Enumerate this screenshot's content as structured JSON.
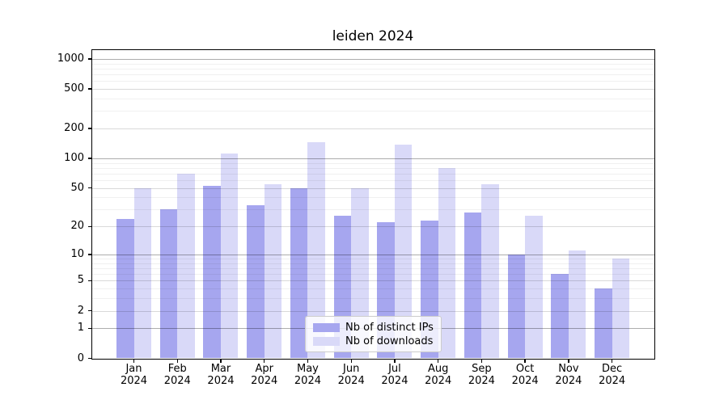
{
  "figure": {
    "background": "#ffffff"
  },
  "chart_data": {
    "type": "bar",
    "title": "leiden 2024",
    "xlabel": "",
    "ylabel": "",
    "categories": [
      "Jan 2024",
      "Feb 2024",
      "Mar 2024",
      "Apr 2024",
      "May 2024",
      "Jun 2024",
      "Jul 2024",
      "Aug 2024",
      "Sep 2024",
      "Oct 2024",
      "Nov 2024",
      "Dec 2024"
    ],
    "series": [
      {
        "name": "Nb of distinct IPs",
        "color": "#a6a6ef",
        "values": [
          24,
          30,
          53,
          33,
          50,
          26,
          22,
          23,
          28,
          10,
          6,
          4
        ]
      },
      {
        "name": "Nb of downloads",
        "color": "#d9d9f8",
        "values": [
          50,
          70,
          112,
          55,
          145,
          50,
          138,
          80,
          55,
          26,
          11,
          9
        ]
      }
    ],
    "yscale": "log1p",
    "ylim": [
      0,
      1230
    ],
    "y_ticks": [
      0,
      1,
      2,
      5,
      10,
      20,
      50,
      100,
      200,
      500,
      1000
    ],
    "y_decade_ticks": [
      1,
      10,
      100,
      1000
    ],
    "y_minor_gridlines": [
      3,
      4,
      6,
      7,
      8,
      9,
      30,
      40,
      60,
      70,
      80,
      90,
      300,
      400,
      600,
      700,
      800,
      900
    ],
    "grid": "horizontal, over bars",
    "legend_position": "lower center"
  },
  "legend": {
    "items": [
      {
        "label": "Nb of distinct IPs",
        "swatch_color": "#a6a6ef"
      },
      {
        "label": "Nb of downloads",
        "swatch_color": "#d9d9f8"
      }
    ]
  },
  "colors": {
    "background": "#ffffff",
    "spine": "#000000",
    "grid_decade": "rgba(0,0,0,0.32)",
    "grid_major": "rgba(0,0,0,0.15)",
    "grid_minor": "rgba(0,0,0,0.06)",
    "text": "#000000",
    "legend_border": "#cccccc",
    "legend_background": "rgba(255,255,255,0.8)"
  }
}
